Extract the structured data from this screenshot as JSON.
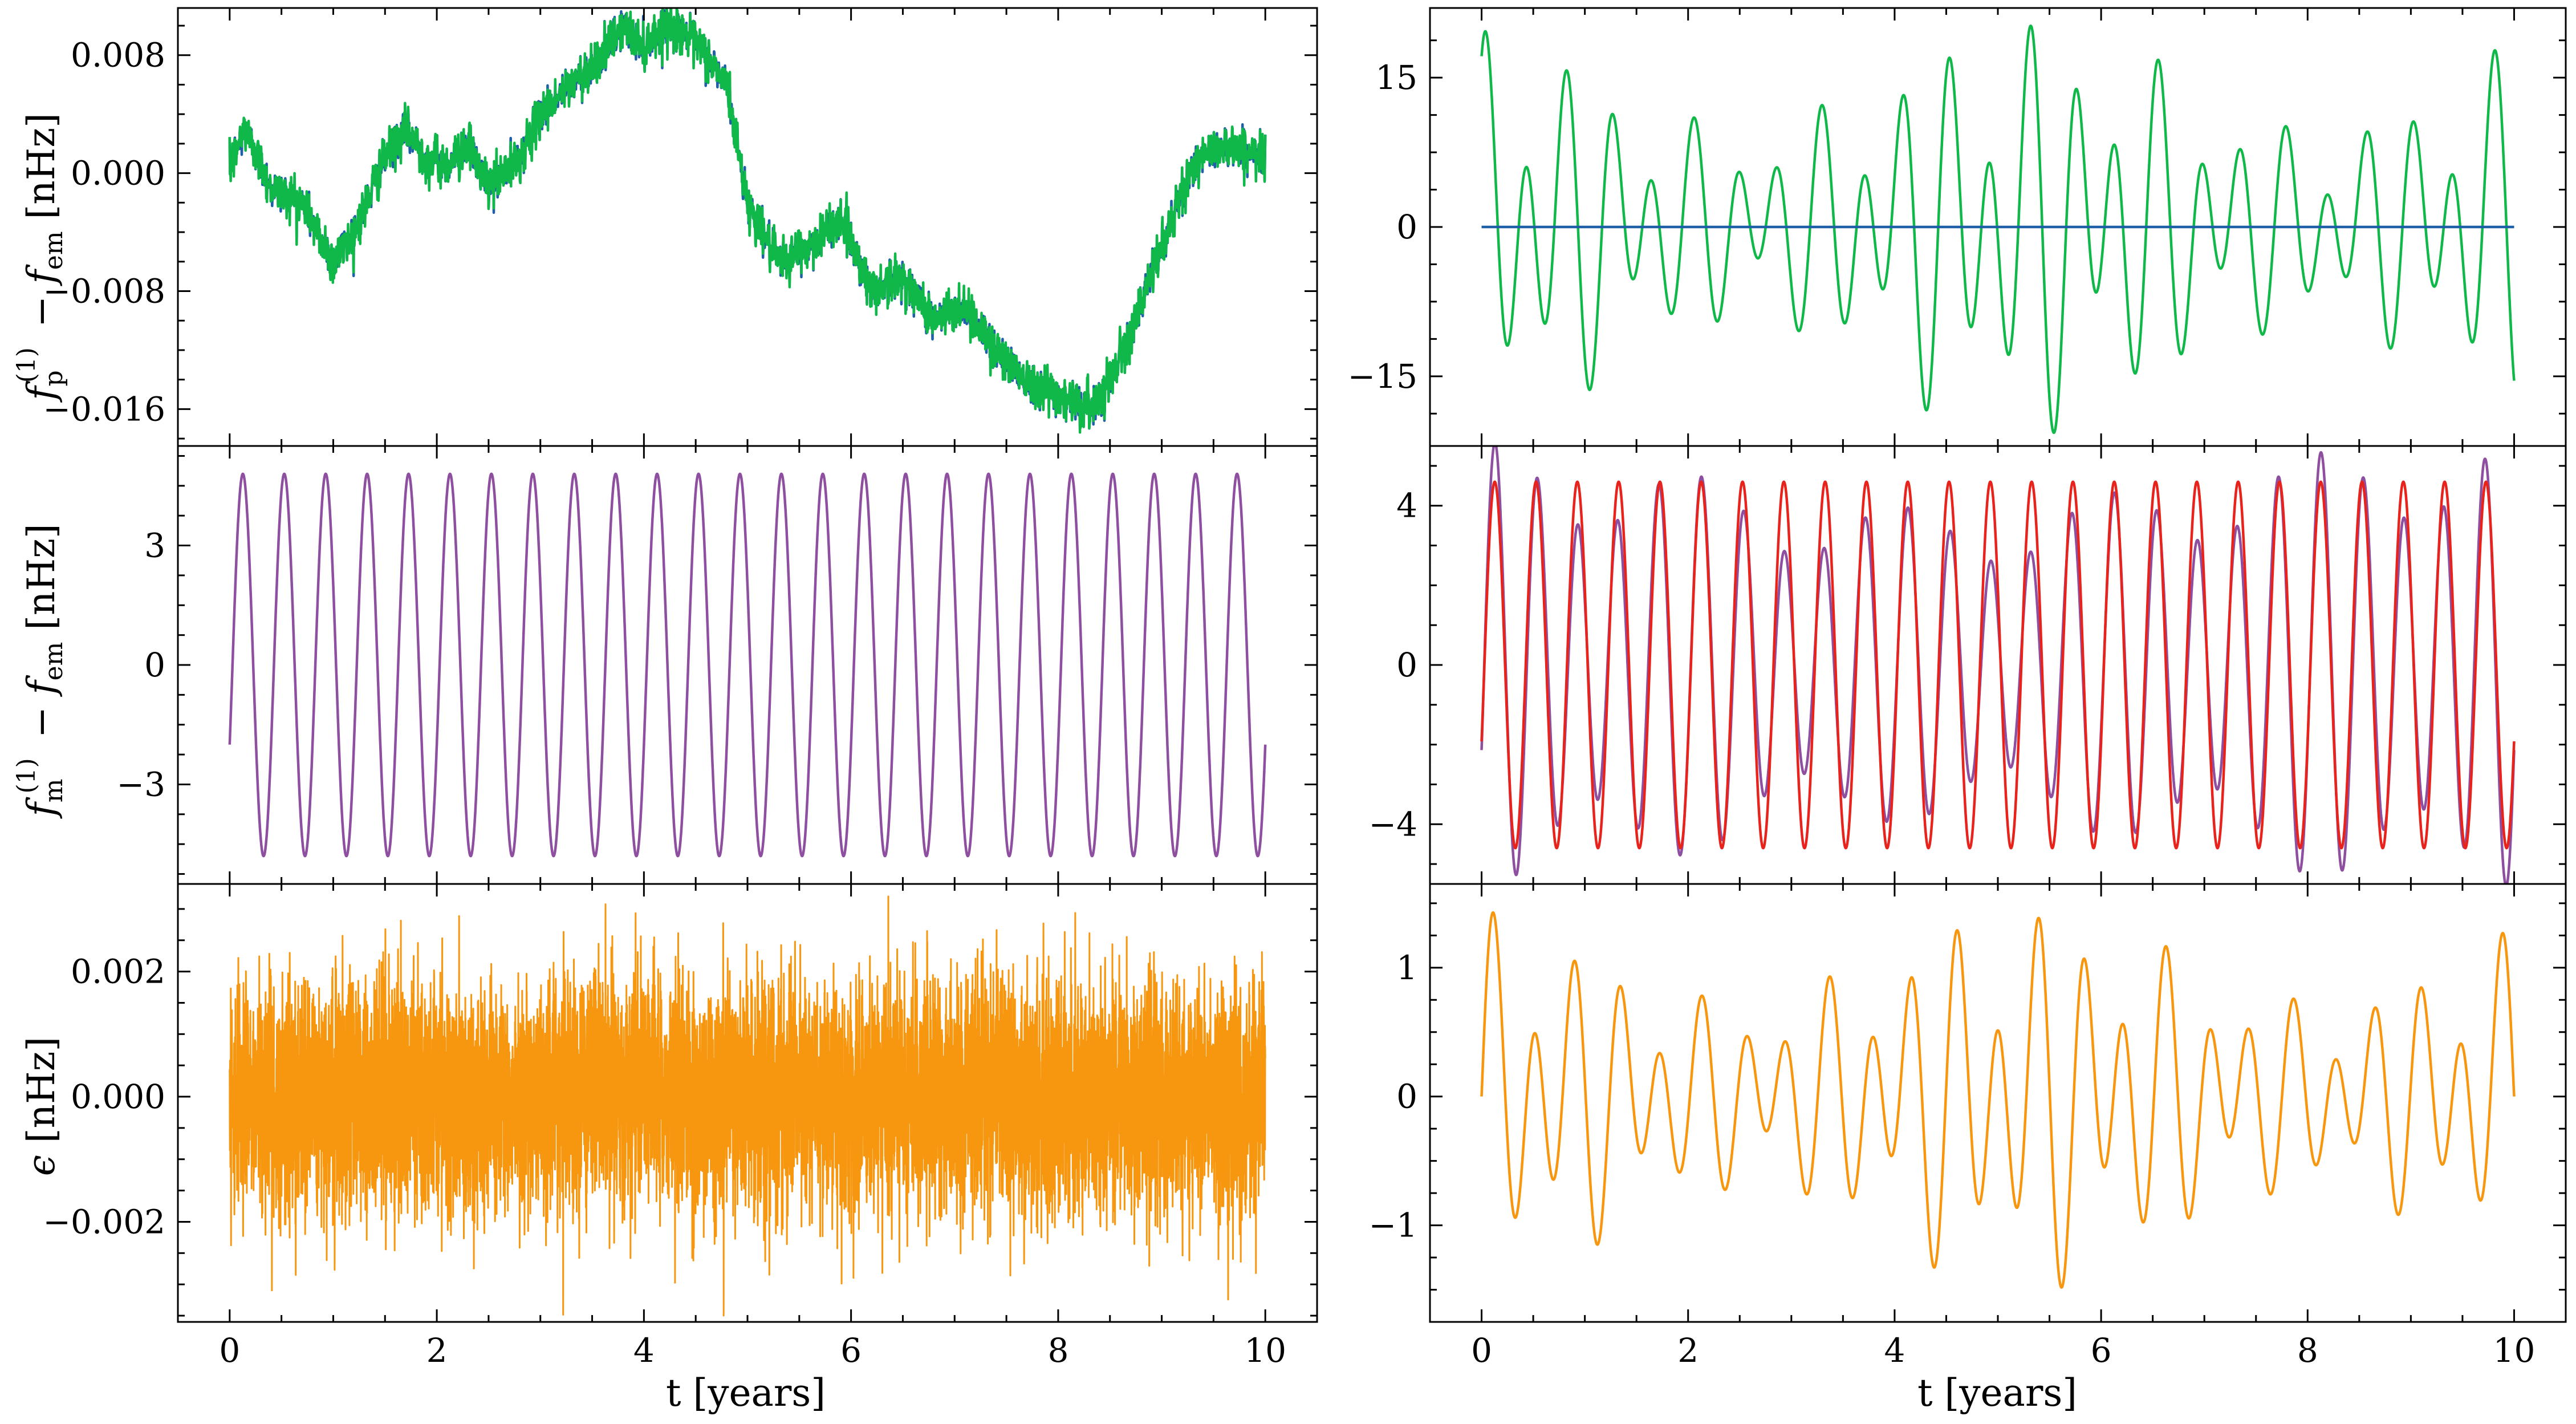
{
  "figure": {
    "xlabel": "t [years]"
  },
  "chart_data": [
    {
      "id": "left-top",
      "type": "line",
      "ylabel_parts": {
        "f": "f",
        "sub_p": "p",
        "sup": "(1)",
        "minus": "−",
        "f2": "f",
        "sub_em": "em",
        "unit": "[nHz]"
      },
      "xlim": [
        -0.5,
        10.5
      ],
      "ylim": [
        -0.0185,
        0.0112
      ],
      "xticks": [
        0,
        2,
        4,
        6,
        8,
        10
      ],
      "yticks": [
        -0.016,
        -0.008,
        0.0,
        0.008
      ],
      "ytick_labels": [
        "−0.016",
        "−0.008",
        "0.000",
        "0.008"
      ],
      "series": [
        {
          "color": "#1f5fa8",
          "kind": "randomwalk",
          "x": [
            0,
            0.15,
            0.4,
            0.7,
            1.0,
            1.2,
            1.5,
            1.7,
            1.9,
            2.1,
            2.3,
            2.5,
            2.8,
            3.0,
            3.3,
            3.6,
            3.8,
            4.0,
            4.2,
            4.4,
            4.6,
            4.8,
            5.0,
            5.3,
            5.6,
            5.9,
            6.2,
            6.5,
            6.8,
            7.1,
            7.4,
            7.7,
            8.0,
            8.3,
            8.5,
            8.8,
            9.0,
            9.3,
            9.6,
            9.8,
            10.0
          ],
          "y": [
            0.0005,
            0.003,
            -0.001,
            -0.002,
            -0.006,
            -0.004,
            0.001,
            0.003,
            0.001,
            0.0005,
            0.002,
            -0.001,
            0.001,
            0.004,
            0.006,
            0.008,
            0.01,
            0.0085,
            0.01,
            0.0095,
            0.008,
            0.006,
            -0.002,
            -0.006,
            -0.005,
            -0.003,
            -0.008,
            -0.007,
            -0.01,
            -0.009,
            -0.012,
            -0.014,
            -0.015,
            -0.016,
            -0.014,
            -0.009,
            -0.005,
            0.0005,
            0.002,
            0.0015,
            0.001
          ]
        },
        {
          "color": "#10b84a",
          "kind": "randomwalk-overlay"
        }
      ]
    },
    {
      "id": "right-top",
      "type": "line",
      "xlim": [
        -0.5,
        10.5
      ],
      "ylim": [
        -22,
        22
      ],
      "xticks": [
        0,
        2,
        4,
        6,
        8,
        10
      ],
      "yticks": [
        -15,
        0,
        15
      ],
      "ytick_labels": [
        "−15",
        "0",
        "15"
      ],
      "series": [
        {
          "color": "#10b84a",
          "kind": "beat",
          "amp": 16,
          "f1": 2.45,
          "f2": 1.55,
          "a2": 0.35,
          "phase": 1.2
        },
        {
          "color": "#1f5fa8",
          "kind": "flat",
          "value": 0
        }
      ]
    },
    {
      "id": "left-mid",
      "type": "line",
      "ylabel_parts": {
        "f": "f",
        "sub_m": "m",
        "sup": "(1)",
        "minus": "−",
        "f2": "f",
        "sub_em": "em",
        "unit": "[nHz]"
      },
      "xlim": [
        -0.5,
        10.5
      ],
      "ylim": [
        -5.5,
        5.5
      ],
      "xticks": [
        0,
        2,
        4,
        6,
        8,
        10
      ],
      "yticks": [
        -3,
        0,
        3
      ],
      "ytick_labels": [
        "−3",
        "0",
        "3"
      ],
      "series": [
        {
          "color": "#8e4fa0",
          "kind": "sine",
          "amp": 4.8,
          "freq": 2.5,
          "phase": -0.43
        }
      ]
    },
    {
      "id": "right-mid",
      "type": "line",
      "xlim": [
        -0.5,
        10.5
      ],
      "ylim": [
        -5.5,
        5.5
      ],
      "xticks": [
        0,
        2,
        4,
        6,
        8,
        10
      ],
      "yticks": [
        -4,
        0,
        4
      ],
      "ytick_labels": [
        "−4",
        "0",
        "4"
      ],
      "series": [
        {
          "color": "#8e4fa0",
          "kind": "beat",
          "amp": 4.8,
          "f1": 2.5,
          "f2": 2.0,
          "a2": 0.18,
          "phase": -0.43
        },
        {
          "color": "#e8231c",
          "kind": "sine",
          "amp": 4.6,
          "freq": 2.5,
          "phase": -0.43
        }
      ]
    },
    {
      "id": "left-bot",
      "type": "line",
      "ylabel_parts": {
        "eps": "ϵ",
        "unit": "[nHz]"
      },
      "xlim": [
        -0.5,
        10.5
      ],
      "ylim": [
        -0.0036,
        0.0034
      ],
      "xticks": [
        0,
        2,
        4,
        6,
        8,
        10
      ],
      "yticks": [
        -0.002,
        0.0,
        0.002
      ],
      "ytick_labels": [
        "−0.002",
        "0.000",
        "0.002"
      ],
      "series": [
        {
          "color": "#f7960f",
          "kind": "noise",
          "sigma": 0.0009,
          "max": 0.0032,
          "min": -0.0035
        }
      ]
    },
    {
      "id": "right-bot",
      "type": "line",
      "xlim": [
        -0.5,
        10.5
      ],
      "ylim": [
        -1.75,
        1.65
      ],
      "xticks": [
        0,
        2,
        4,
        6,
        8,
        10
      ],
      "yticks": [
        -1,
        0,
        1
      ],
      "ytick_labels": [
        "−1",
        "0",
        "1"
      ],
      "series": [
        {
          "color": "#f7960f",
          "kind": "beat",
          "amp": 1.15,
          "f1": 2.45,
          "f2": 1.55,
          "a2": 0.33,
          "phase": 0.0
        }
      ]
    }
  ]
}
